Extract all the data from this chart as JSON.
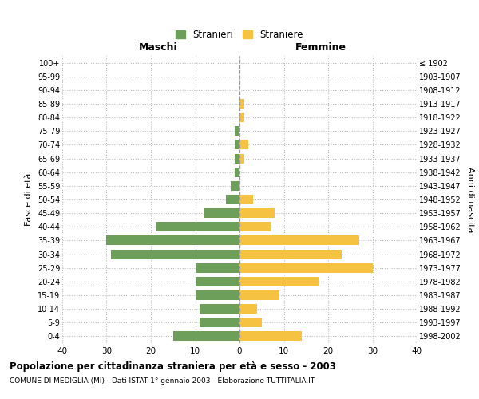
{
  "age_groups": [
    "100+",
    "95-99",
    "90-94",
    "85-89",
    "80-84",
    "75-79",
    "70-74",
    "65-69",
    "60-64",
    "55-59",
    "50-54",
    "45-49",
    "40-44",
    "35-39",
    "30-34",
    "25-29",
    "20-24",
    "15-19",
    "10-14",
    "5-9",
    "0-4"
  ],
  "birth_years": [
    "≤ 1902",
    "1903-1907",
    "1908-1912",
    "1913-1917",
    "1918-1922",
    "1923-1927",
    "1928-1932",
    "1933-1937",
    "1938-1942",
    "1943-1947",
    "1948-1952",
    "1953-1957",
    "1958-1962",
    "1963-1967",
    "1968-1972",
    "1973-1977",
    "1978-1982",
    "1983-1987",
    "1988-1992",
    "1993-1997",
    "1998-2002"
  ],
  "maschi": [
    0,
    0,
    0,
    0,
    0,
    1,
    1,
    1,
    1,
    2,
    3,
    8,
    19,
    30,
    29,
    10,
    10,
    10,
    9,
    9,
    15
  ],
  "femmine": [
    0,
    0,
    0,
    1,
    1,
    0,
    2,
    1,
    0,
    0,
    3,
    8,
    7,
    27,
    23,
    30,
    18,
    9,
    4,
    5,
    14
  ],
  "maschi_color": "#6d9f5b",
  "femmine_color": "#f5c242",
  "background_color": "#ffffff",
  "grid_color": "#bbbbbb",
  "title": "Popolazione per cittadinanza straniera per età e sesso - 2003",
  "subtitle": "COMUNE DI MEDIGLIA (MI) - Dati ISTAT 1° gennaio 2003 - Elaborazione TUTTITALIA.IT",
  "xlabel_left": "Maschi",
  "xlabel_right": "Femmine",
  "ylabel_left": "Fasce di età",
  "ylabel_right": "Anni di nascita",
  "legend_stranieri": "Stranieri",
  "legend_straniere": "Straniere",
  "xlim": 40
}
